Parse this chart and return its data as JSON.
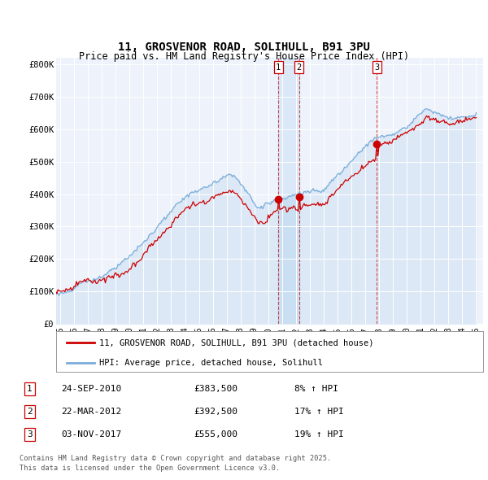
{
  "title": "11, GROSVENOR ROAD, SOLIHULL, B91 3PU",
  "subtitle": "Price paid vs. HM Land Registry's House Price Index (HPI)",
  "ylabel_ticks": [
    "£0",
    "£100K",
    "£200K",
    "£300K",
    "£400K",
    "£500K",
    "£600K",
    "£700K",
    "£800K"
  ],
  "ytick_values": [
    0,
    100000,
    200000,
    300000,
    400000,
    500000,
    600000,
    700000,
    800000
  ],
  "ylim": [
    0,
    820000
  ],
  "xlim_start": 1994.7,
  "xlim_end": 2025.5,
  "sale_color": "#cc0000",
  "hpi_color": "#7aaddb",
  "hpi_fill_color": "#ddeeff",
  "background_color": "#eef3fb",
  "transactions": [
    {
      "label": "1",
      "date": "24-SEP-2010",
      "price": 383500,
      "pct": "8%",
      "x": 2010.73
    },
    {
      "label": "2",
      "date": "22-MAR-2012",
      "price": 392500,
      "pct": "17%",
      "x": 2012.22
    },
    {
      "label": "3",
      "date": "03-NOV-2017",
      "price": 555000,
      "pct": "19%",
      "x": 2017.84
    }
  ],
  "legend_label_sale": "11, GROSVENOR ROAD, SOLIHULL, B91 3PU (detached house)",
  "legend_label_hpi": "HPI: Average price, detached house, Solihull",
  "footer1": "Contains HM Land Registry data © Crown copyright and database right 2025.",
  "footer2": "This data is licensed under the Open Government Licence v3.0."
}
